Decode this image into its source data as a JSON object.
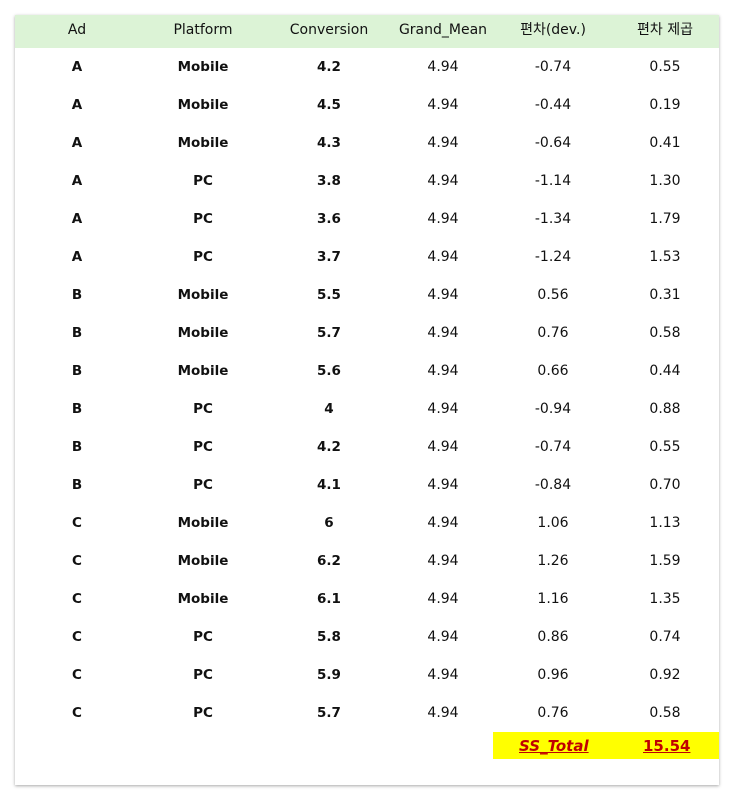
{
  "table": {
    "headers": [
      "Ad",
      "Platform",
      "Conversion",
      "Grand_Mean",
      "편차(dev.)",
      "편차 제곱"
    ],
    "rows": [
      [
        "A",
        "Mobile",
        "4.2",
        "4.94",
        "-0.74",
        "0.55"
      ],
      [
        "A",
        "Mobile",
        "4.5",
        "4.94",
        "-0.44",
        "0.19"
      ],
      [
        "A",
        "Mobile",
        "4.3",
        "4.94",
        "-0.64",
        "0.41"
      ],
      [
        "A",
        "PC",
        "3.8",
        "4.94",
        "-1.14",
        "1.30"
      ],
      [
        "A",
        "PC",
        "3.6",
        "4.94",
        "-1.34",
        "1.79"
      ],
      [
        "A",
        "PC",
        "3.7",
        "4.94",
        "-1.24",
        "1.53"
      ],
      [
        "B",
        "Mobile",
        "5.5",
        "4.94",
        "0.56",
        "0.31"
      ],
      [
        "B",
        "Mobile",
        "5.7",
        "4.94",
        "0.76",
        "0.58"
      ],
      [
        "B",
        "Mobile",
        "5.6",
        "4.94",
        "0.66",
        "0.44"
      ],
      [
        "B",
        "PC",
        "4",
        "4.94",
        "-0.94",
        "0.88"
      ],
      [
        "B",
        "PC",
        "4.2",
        "4.94",
        "-0.74",
        "0.55"
      ],
      [
        "B",
        "PC",
        "4.1",
        "4.94",
        "-0.84",
        "0.70"
      ],
      [
        "C",
        "Mobile",
        "6",
        "4.94",
        "1.06",
        "1.13"
      ],
      [
        "C",
        "Mobile",
        "6.2",
        "4.94",
        "1.26",
        "1.59"
      ],
      [
        "C",
        "Mobile",
        "6.1",
        "4.94",
        "1.16",
        "1.35"
      ],
      [
        "C",
        "PC",
        "5.8",
        "4.94",
        "0.86",
        "0.74"
      ],
      [
        "C",
        "PC",
        "5.9",
        "4.94",
        "0.96",
        "0.92"
      ],
      [
        "C",
        "PC",
        "5.7",
        "4.94",
        "0.76",
        "0.58"
      ]
    ],
    "total_label": "SS_Total",
    "total_value": "15.54"
  }
}
